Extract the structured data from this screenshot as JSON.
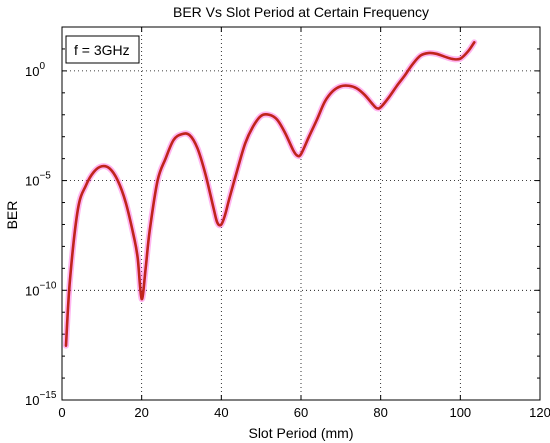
{
  "chart_data": {
    "type": "line",
    "title": "BER Vs Slot Period at Certain Frequency",
    "xlabel": "Slot Period (mm)",
    "ylabel": "BER",
    "xlim": [
      0,
      120
    ],
    "ylim": [
      1e-15,
      100.0
    ],
    "yscale": "log",
    "grid": true,
    "grid_style": "dotted",
    "annotation": "f = 3GHz",
    "annotation_position": "top-left",
    "x_ticks": [
      0,
      20,
      40,
      60,
      80,
      100,
      120
    ],
    "x_tick_labels": [
      "0",
      "20",
      "40",
      "60",
      "80",
      "100",
      "120"
    ],
    "y_ticks": [
      1e-15,
      1e-10,
      1e-05,
      1
    ],
    "y_tick_bases": [
      "10",
      "10",
      "10",
      "10"
    ],
    "y_tick_exponents": [
      "−15",
      "−10",
      "−5",
      "0"
    ],
    "colors": {
      "line": "#c0241c",
      "halo": "#ff2ad4"
    },
    "series": [
      {
        "x": [
          1,
          2,
          4,
          6,
          8,
          10,
          12,
          14,
          16,
          18,
          19,
          20,
          21,
          22,
          24,
          26,
          28,
          30,
          32,
          34,
          36,
          38,
          39,
          40,
          41,
          42,
          44,
          46,
          48,
          50,
          52,
          54,
          56,
          58,
          59,
          60,
          62,
          64,
          66,
          68,
          70,
          72,
          74,
          76,
          78,
          79,
          80,
          82,
          84,
          86,
          88,
          90,
          92,
          94,
          96,
          98,
          100,
          102,
          103.5
        ],
        "y": [
          3e-13,
          3e-10,
          5e-07,
          6e-06,
          2.5e-05,
          4.5e-05,
          3.5e-05,
          1e-05,
          1e-06,
          3e-08,
          3e-09,
          4e-11,
          1e-09,
          5e-08,
          1e-05,
          0.0001,
          0.0007,
          0.0013,
          0.0012,
          0.0003,
          2e-05,
          6e-07,
          1.2e-07,
          1e-07,
          3e-07,
          1.5e-06,
          3e-05,
          0.0005,
          0.003,
          0.009,
          0.01,
          0.006,
          0.0015,
          0.00025,
          0.00014,
          0.00016,
          0.001,
          0.006,
          0.04,
          0.12,
          0.2,
          0.21,
          0.16,
          0.08,
          0.03,
          0.02,
          0.022,
          0.06,
          0.2,
          0.6,
          2,
          5,
          6.5,
          6,
          4.5,
          3.5,
          3.6,
          8,
          20
        ]
      }
    ]
  }
}
